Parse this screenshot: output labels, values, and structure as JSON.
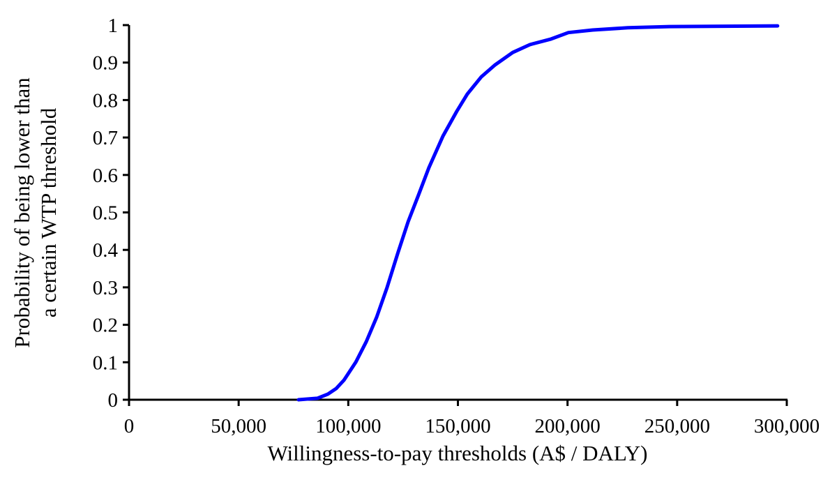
{
  "chart_data": {
    "type": "line",
    "title": "",
    "xlabel": "Willingness-to-pay thresholds (A$ / DALY)",
    "ylabel_lines": [
      "Probability of being lower than",
      "a certain WTP threshold"
    ],
    "xlim": [
      0,
      300000
    ],
    "ylim": [
      0,
      1
    ],
    "x_ticks": [
      0,
      50000,
      100000,
      150000,
      200000,
      250000,
      300000
    ],
    "x_tick_labels": [
      "0",
      "50,000",
      "100,000",
      "150,000",
      "200,000",
      "250,000",
      "300,000"
    ],
    "y_ticks": [
      0,
      0.1,
      0.2,
      0.3,
      0.4,
      0.5,
      0.6,
      0.7,
      0.8,
      0.9,
      1
    ],
    "y_tick_labels": [
      "0",
      "0.1",
      "0.2",
      "0.3",
      "0.4",
      "0.5",
      "0.6",
      "0.7",
      "0.8",
      "0.9",
      "1"
    ],
    "grid": false,
    "legend": "none",
    "line_color": "#0000ff",
    "series": [
      {
        "x": [
          77300,
          85900,
          90700,
          94500,
          98000,
          103400,
          108200,
          112900,
          117700,
          122500,
          127300,
          132000,
          136800,
          143200,
          149500,
          154300,
          160700,
          167000,
          175000,
          182900,
          192500,
          200400,
          211500,
          227500,
          246500,
          295800
        ],
        "y": [
          0,
          0.004,
          0.015,
          0.03,
          0.052,
          0.1,
          0.155,
          0.22,
          0.3,
          0.39,
          0.475,
          0.546,
          0.62,
          0.704,
          0.77,
          0.816,
          0.862,
          0.894,
          0.927,
          0.948,
          0.963,
          0.98,
          0.987,
          0.993,
          0.996,
          0.998
        ]
      }
    ]
  }
}
